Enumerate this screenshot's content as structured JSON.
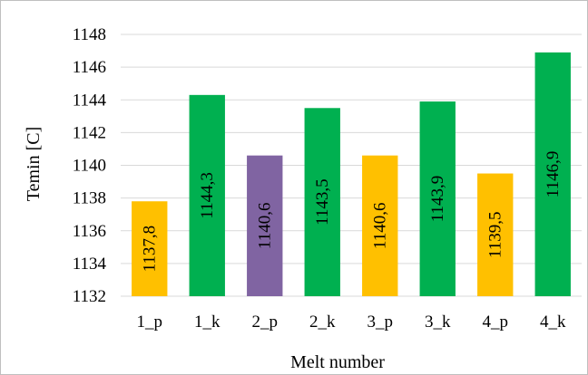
{
  "chart_data": {
    "type": "bar",
    "xlabel": "Melt number",
    "ylabel": "Temin [C]",
    "categories": [
      "1_p",
      "1_k",
      "2_p",
      "2_k",
      "3_p",
      "3_k",
      "4_p",
      "4_k"
    ],
    "values": [
      1137.8,
      1144.3,
      1140.6,
      1143.5,
      1140.6,
      1143.9,
      1139.5,
      1146.9
    ],
    "data_labels": [
      "1137,8",
      "1144,3",
      "1140,6",
      "1143,5",
      "1140,6",
      "1143,9",
      "1139,5",
      "1146,9"
    ],
    "colors": [
      "#ffc000",
      "#00b050",
      "#8064a2",
      "#00b050",
      "#ffc000",
      "#00b050",
      "#ffc000",
      "#00b050"
    ],
    "ylim": [
      1132,
      1148
    ],
    "yticks": [
      1132,
      1134,
      1136,
      1138,
      1140,
      1142,
      1144,
      1146,
      1148
    ],
    "grid": true,
    "legend": "none"
  }
}
